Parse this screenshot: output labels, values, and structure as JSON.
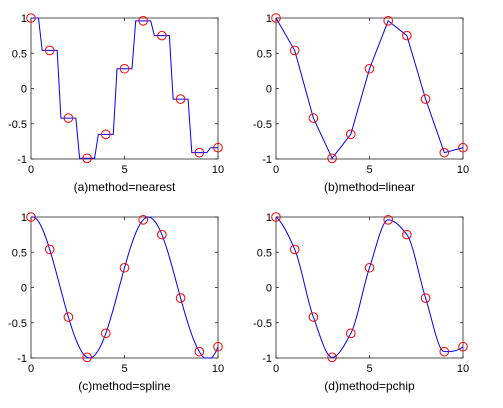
{
  "chart_data": [
    {
      "type": "line",
      "title": "(a)method=nearest",
      "xlim": [
        0,
        10
      ],
      "ylim": [
        -1,
        1
      ],
      "xticks": [
        "0",
        "5",
        "10"
      ],
      "yticks": [
        "-1",
        "-0.5",
        "0",
        "0.5",
        "1"
      ],
      "markers": {
        "x": [
          0,
          1,
          2,
          3,
          4,
          5,
          6,
          7,
          8,
          9,
          10
        ],
        "y": [
          1.0,
          0.54,
          -0.42,
          -0.99,
          -0.65,
          0.28,
          0.96,
          0.75,
          -0.15,
          -0.91,
          -0.84
        ]
      },
      "curve": "nearest",
      "colors": {
        "line": "#0000ff",
        "marker": "#ff0000"
      }
    },
    {
      "type": "line",
      "title": "(b)method=linear",
      "xlim": [
        0,
        10
      ],
      "ylim": [
        -1,
        1
      ],
      "xticks": [
        "0",
        "5",
        "10"
      ],
      "yticks": [
        "-1",
        "-0.5",
        "0",
        "0.5",
        "1"
      ],
      "markers": {
        "x": [
          0,
          1,
          2,
          3,
          4,
          5,
          6,
          7,
          8,
          9,
          10
        ],
        "y": [
          1.0,
          0.54,
          -0.42,
          -0.99,
          -0.65,
          0.28,
          0.96,
          0.75,
          -0.15,
          -0.91,
          -0.84
        ]
      },
      "curve": "linear",
      "colors": {
        "line": "#0000ff",
        "marker": "#ff0000"
      }
    },
    {
      "type": "line",
      "title": "(c)method=spline",
      "xlim": [
        0,
        10
      ],
      "ylim": [
        -1,
        1
      ],
      "xticks": [
        "0",
        "5",
        "10"
      ],
      "yticks": [
        "-1",
        "-0.5",
        "0",
        "0.5",
        "1"
      ],
      "markers": {
        "x": [
          0,
          1,
          2,
          3,
          4,
          5,
          6,
          7,
          8,
          9,
          10
        ],
        "y": [
          1.0,
          0.54,
          -0.42,
          -0.99,
          -0.65,
          0.28,
          0.96,
          0.75,
          -0.15,
          -0.91,
          -0.84
        ]
      },
      "curve": "spline",
      "colors": {
        "line": "#0000ff",
        "marker": "#ff0000"
      }
    },
    {
      "type": "line",
      "title": "(d)method=pchip",
      "xlim": [
        0,
        10
      ],
      "ylim": [
        -1,
        1
      ],
      "xticks": [
        "0",
        "5",
        "10"
      ],
      "yticks": [
        "-1",
        "-0.5",
        "0",
        "0.5",
        "1"
      ],
      "markers": {
        "x": [
          0,
          1,
          2,
          3,
          4,
          5,
          6,
          7,
          8,
          9,
          10
        ],
        "y": [
          1.0,
          0.54,
          -0.42,
          -0.99,
          -0.65,
          0.28,
          0.96,
          0.75,
          -0.15,
          -0.91,
          -0.84
        ]
      },
      "curve": "pchip",
      "colors": {
        "line": "#0000ff",
        "marker": "#ff0000"
      }
    }
  ]
}
